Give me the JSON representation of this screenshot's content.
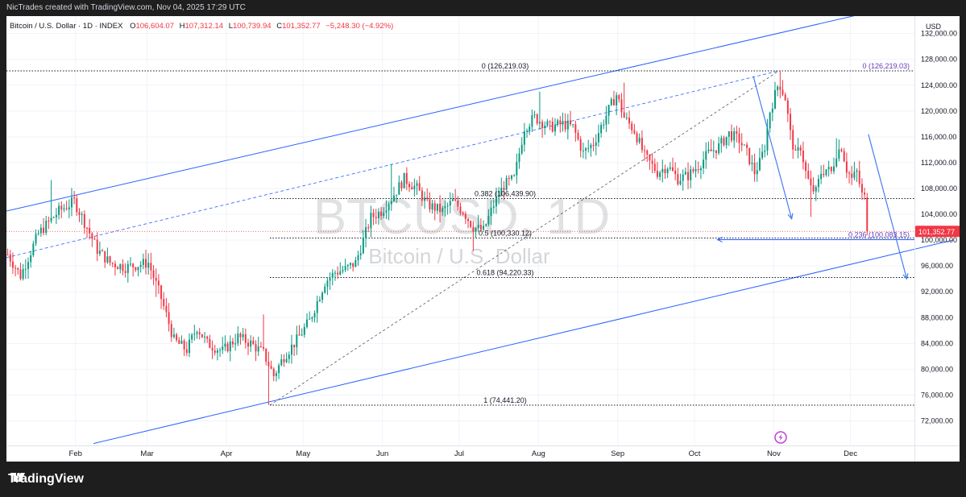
{
  "header": {
    "creator": "NicTrades created with TradingView.com, Nov 04, 2025 17:29 UTC"
  },
  "legend": {
    "symbol": "Bitcoin / U.S. Dollar · 1D · INDEX",
    "open_label": "O",
    "open": "106,604.07",
    "high_label": "H",
    "high": "107,312.14",
    "low_label": "L",
    "low": "100,739.94",
    "close_label": "C",
    "close": "101,352.77",
    "change": "−5,248.30 (−4.92%)"
  },
  "watermark": {
    "ticker": "BTCUSD, 1D",
    "name": "Bitcoin / U.S. Dollar"
  },
  "colors": {
    "up": "#089981",
    "down": "#f23645",
    "channel": "#2962ff",
    "fib": "#131722",
    "price_tag": "#f23645"
  },
  "footer": {
    "brand": "TradingView"
  },
  "chart_data": {
    "type": "candlestick",
    "axis_currency": "USD",
    "ylim": [
      68200,
      134700
    ],
    "y_ticks": [
      72000,
      76000,
      80000,
      84000,
      88000,
      92000,
      96000,
      100000,
      104000,
      108000,
      112000,
      116000,
      120000,
      124000,
      128000,
      132000
    ],
    "y_tick_labels": [
      "72,000.00",
      "76,000.00",
      "80,000.00",
      "84,000.00",
      "88,000.00",
      "92,000.00",
      "96,000.00",
      "100,000.00",
      "104,000.00",
      "108,000.00",
      "112,000.00",
      "116,000.00",
      "120,000.00",
      "124,000.00",
      "128,000.00",
      "132,000.00"
    ],
    "x_ticks": [
      "Feb",
      "Mar",
      "Apr",
      "May",
      "Jun",
      "Jul",
      "Aug",
      "Sep",
      "Oct",
      "Nov",
      "Dec"
    ],
    "xlim_days": [
      0,
      355
    ],
    "last_price": 101352.77,
    "last_price_label": "101,352.77",
    "fib_levels": [
      {
        "ratio": "0",
        "price": 126219.03,
        "label": "0 (126,219.03)"
      },
      {
        "ratio": "0.382",
        "price": 106439.9,
        "label": "0.382 (106,439.90)"
      },
      {
        "ratio": "0.5",
        "price": 100330.12,
        "label": "0.5 (100,330.12)"
      },
      {
        "ratio": "0.618",
        "price": 94220.33,
        "label": "0.618 (94,220.33)"
      },
      {
        "ratio": "1",
        "price": 74441.2,
        "label": "1 (74,441.20)"
      }
    ],
    "fib2_levels": [
      {
        "ratio": "0",
        "price": 126219.03,
        "label": "0 (126,219.03)"
      },
      {
        "ratio": "0.236",
        "price": 100083.15,
        "label": "0.236 (100,083.15)"
      }
    ],
    "ohlc_anchors": [
      [
        0,
        97800
      ],
      [
        5,
        94500
      ],
      [
        12,
        101000
      ],
      [
        20,
        104500
      ],
      [
        26,
        106000
      ],
      [
        31,
        102000
      ],
      [
        35,
        98500
      ],
      [
        40,
        96500
      ],
      [
        46,
        95800
      ],
      [
        55,
        96500
      ],
      [
        60,
        91000
      ],
      [
        65,
        84500
      ],
      [
        70,
        83000
      ],
      [
        74,
        86500
      ],
      [
        78,
        84000
      ],
      [
        84,
        82800
      ],
      [
        90,
        85000
      ],
      [
        95,
        84000
      ],
      [
        100,
        82500
      ],
      [
        104,
        79000
      ],
      [
        108,
        82000
      ],
      [
        113,
        84500
      ],
      [
        118,
        87500
      ],
      [
        124,
        93500
      ],
      [
        128,
        95000
      ],
      [
        132,
        95500
      ],
      [
        136,
        96500
      ],
      [
        142,
        103500
      ],
      [
        146,
        104500
      ],
      [
        150,
        106500
      ],
      [
        155,
        109500
      ],
      [
        160,
        108000
      ],
      [
        164,
        105500
      ],
      [
        170,
        104500
      ],
      [
        174,
        106000
      ],
      [
        178,
        104500
      ],
      [
        182,
        102000
      ],
      [
        186,
        101500
      ],
      [
        190,
        105500
      ],
      [
        194,
        108500
      ],
      [
        198,
        109500
      ],
      [
        202,
        117500
      ],
      [
        206,
        119000
      ],
      [
        212,
        117500
      ],
      [
        217,
        118000
      ],
      [
        221,
        117500
      ],
      [
        225,
        113500
      ],
      [
        229,
        115000
      ],
      [
        233,
        118500
      ],
      [
        236,
        121000
      ],
      [
        238,
        122500
      ],
      [
        241,
        119000
      ],
      [
        245,
        117000
      ],
      [
        249,
        113000
      ],
      [
        254,
        110500
      ],
      [
        258,
        111500
      ],
      [
        262,
        109500
      ],
      [
        266,
        110000
      ],
      [
        270,
        111500
      ],
      [
        274,
        113500
      ],
      [
        278,
        114500
      ],
      [
        282,
        116500
      ],
      [
        286,
        115500
      ],
      [
        289,
        113500
      ],
      [
        292,
        110500
      ],
      [
        294,
        112000
      ],
      [
        296,
        114500
      ],
      [
        298,
        120000
      ],
      [
        300,
        122500
      ],
      [
        301.5,
        124500
      ],
      [
        304,
        122000
      ],
      [
        306,
        116500
      ],
      [
        308,
        113000
      ],
      [
        310,
        114500
      ],
      [
        312,
        110500
      ],
      [
        314,
        108000
      ],
      [
        316,
        107500
      ],
      [
        318,
        110500
      ],
      [
        320,
        111000
      ],
      [
        322,
        110500
      ],
      [
        324,
        113500
      ],
      [
        326,
        114500
      ],
      [
        328,
        111000
      ],
      [
        330,
        109500
      ],
      [
        332,
        110500
      ],
      [
        334,
        107000
      ],
      [
        335,
        106604.07
      ],
      [
        336,
        101352.77
      ]
    ],
    "notable_highs": [
      [
        17,
        109300
      ],
      [
        100,
        88500
      ],
      [
        150,
        111800
      ],
      [
        208,
        123000
      ],
      [
        241,
        124400
      ],
      [
        302,
        126219.03
      ],
      [
        324,
        115800
      ]
    ],
    "notable_lows": [
      [
        58,
        91200
      ],
      [
        102,
        74441.2
      ],
      [
        182,
        98300
      ],
      [
        314,
        103600
      ]
    ],
    "channel_upper": [
      [
        0,
        104500
      ],
      [
        332,
        134800
      ]
    ],
    "channel_lower": [
      [
        34,
        68500
      ],
      [
        370,
        100000
      ]
    ],
    "trend_dashed": [
      [
        0,
        97300
      ],
      [
        302,
        126219.03
      ]
    ],
    "diag_dashed": [
      [
        103,
        74441.2
      ],
      [
        302,
        126219.03
      ]
    ],
    "arrows": [
      {
        "from": [
          292,
          125400
        ],
        "to": [
          307,
          103300
        ]
      },
      {
        "from": [
          337,
          116400
        ],
        "to": [
          352,
          94000
        ]
      }
    ],
    "horizontal_ray": {
      "price": 100083.15,
      "from_day": 278
    }
  }
}
